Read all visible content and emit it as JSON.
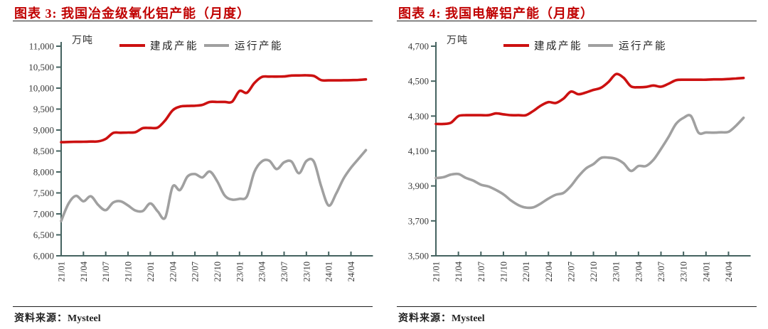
{
  "colors": {
    "title_red": "#c00000",
    "built_line": "#cc1111",
    "running_line": "#a0a0a0",
    "axis": "#456360",
    "tick_text": "#3a3a3a",
    "rule": "#1f1f1f"
  },
  "panels": [
    {
      "title": "图表 3: 我国冶金级氧化铝产能（月度）",
      "unit_label": "万吨",
      "source_prefix": "资料来源：",
      "source_name": "Mysteel",
      "legend": [
        {
          "label": "建成产能",
          "color": "#cc1111"
        },
        {
          "label": "运行产能",
          "color": "#a0a0a0"
        }
      ]
    },
    {
      "title": "图表 4: 我国电解铝产能（月度）",
      "unit_label": "万吨",
      "source_prefix": "资料来源：",
      "source_name": "Mysteel",
      "legend": [
        {
          "label": "建成产能",
          "color": "#cc1111"
        },
        {
          "label": "运行产能",
          "color": "#a0a0a0"
        }
      ]
    }
  ],
  "chart_data": [
    {
      "type": "line",
      "title": "图表 3: 我国冶金级氧化铝产能（月度）",
      "ylabel": "万吨",
      "grid": false,
      "legend_position": "top",
      "ylim": [
        6000,
        11000
      ],
      "ytick_step": 500,
      "x": [
        "21/01",
        "21/02",
        "21/03",
        "21/04",
        "21/05",
        "21/06",
        "21/07",
        "21/08",
        "21/09",
        "21/10",
        "21/11",
        "21/12",
        "22/01",
        "22/02",
        "22/03",
        "22/04",
        "22/05",
        "22/06",
        "22/07",
        "22/08",
        "22/09",
        "22/10",
        "22/11",
        "22/12",
        "23/01",
        "23/02",
        "23/03",
        "23/04",
        "23/05",
        "23/06",
        "23/07",
        "23/08",
        "23/09",
        "23/10",
        "23/11",
        "23/12",
        "24/01",
        "24/02",
        "24/03",
        "24/04",
        "24/05",
        "24/06"
      ],
      "x_tick_labels": [
        "21/01",
        "21/04",
        "21/07",
        "21/10",
        "22/01",
        "22/04",
        "22/07",
        "22/10",
        "23/01",
        "23/04",
        "23/07",
        "23/10",
        "24/01",
        "24/04"
      ],
      "series": [
        {
          "name": "建成产能",
          "color": "#cc1111",
          "values": [
            8710,
            8715,
            8720,
            8720,
            8725,
            8730,
            8790,
            8930,
            8935,
            8940,
            8950,
            9045,
            9050,
            9060,
            9230,
            9470,
            9560,
            9575,
            9580,
            9600,
            9670,
            9670,
            9672,
            9675,
            9930,
            9890,
            10120,
            10265,
            10275,
            10275,
            10278,
            10300,
            10302,
            10305,
            10290,
            10190,
            10185,
            10185,
            10188,
            10190,
            10195,
            10208
          ]
        },
        {
          "name": "运行产能",
          "color": "#a0a0a0",
          "values": [
            6830,
            7250,
            7430,
            7300,
            7420,
            7210,
            7090,
            7270,
            7300,
            7200,
            7080,
            7070,
            7250,
            7060,
            6910,
            7650,
            7570,
            7890,
            7950,
            7870,
            8010,
            7780,
            7440,
            7340,
            7360,
            7420,
            8000,
            8250,
            8270,
            8070,
            8230,
            8250,
            7970,
            8260,
            8250,
            7650,
            7200,
            7480,
            7840,
            8100,
            8310,
            8520
          ]
        }
      ],
      "source": "Mysteel"
    },
    {
      "type": "line",
      "title": "图表 4: 我国电解铝产能（月度）",
      "ylabel": "万吨",
      "grid": false,
      "legend_position": "top",
      "ylim": [
        3500,
        4700
      ],
      "ytick_step": 200,
      "x": [
        "21/01",
        "21/02",
        "21/03",
        "21/04",
        "21/05",
        "21/06",
        "21/07",
        "21/08",
        "21/09",
        "21/10",
        "21/11",
        "21/12",
        "22/01",
        "22/02",
        "22/03",
        "22/04",
        "22/05",
        "22/06",
        "22/07",
        "22/08",
        "22/09",
        "22/10",
        "22/11",
        "22/12",
        "23/01",
        "23/02",
        "23/03",
        "23/04",
        "23/05",
        "23/06",
        "23/07",
        "23/08",
        "23/09",
        "23/10",
        "23/11",
        "23/12",
        "24/01",
        "24/02",
        "24/03",
        "24/04",
        "24/05",
        "24/06"
      ],
      "x_tick_labels": [
        "21/01",
        "21/04",
        "21/07",
        "21/10",
        "22/01",
        "22/04",
        "22/07",
        "22/10",
        "23/01",
        "23/04",
        "23/07",
        "23/10",
        "24/01",
        "24/04"
      ],
      "series": [
        {
          "name": "建成产能",
          "color": "#cc1111",
          "values": [
            4255,
            4255,
            4262,
            4300,
            4305,
            4305,
            4305,
            4305,
            4315,
            4310,
            4305,
            4305,
            4305,
            4330,
            4360,
            4380,
            4375,
            4400,
            4440,
            4425,
            4435,
            4450,
            4462,
            4495,
            4540,
            4520,
            4470,
            4465,
            4467,
            4475,
            4468,
            4485,
            4505,
            4508,
            4508,
            4508,
            4508,
            4510,
            4510,
            4512,
            4515,
            4518
          ]
        },
        {
          "name": "运行产能",
          "color": "#a0a0a0",
          "values": [
            3945,
            3950,
            3965,
            3968,
            3946,
            3930,
            3907,
            3897,
            3877,
            3852,
            3817,
            3790,
            3776,
            3778,
            3800,
            3828,
            3850,
            3860,
            3900,
            3955,
            4000,
            4025,
            4060,
            4062,
            4055,
            4030,
            3986,
            4014,
            4014,
            4050,
            4112,
            4180,
            4255,
            4290,
            4300,
            4205,
            4206,
            4205,
            4207,
            4210,
            4245,
            4290
          ]
        }
      ],
      "source": "Mysteel"
    }
  ]
}
